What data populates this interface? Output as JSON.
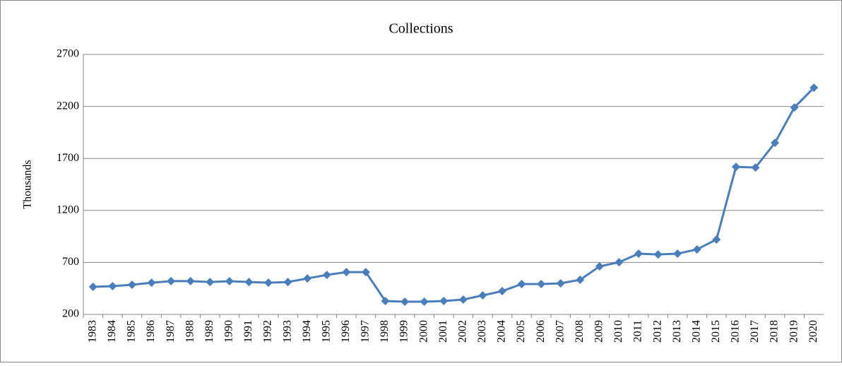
{
  "chart_data": {
    "type": "line",
    "title": "Collections",
    "y_label": "Thousands",
    "categories": [
      "1983",
      "1984",
      "1985",
      "1986",
      "1987",
      "1988",
      "1989",
      "1990",
      "1991",
      "1992",
      "1993",
      "1994",
      "1995",
      "1996",
      "1997",
      "1998",
      "1999",
      "2000",
      "2001",
      "2002",
      "2003",
      "2004",
      "2005",
      "2006",
      "2007",
      "2008",
      "2009",
      "2010",
      "2011",
      "2012",
      "2013",
      "2014",
      "2015",
      "2016",
      "2017",
      "2018",
      "2019",
      "2020"
    ],
    "values": [
      465,
      472,
      485,
      505,
      520,
      520,
      512,
      519,
      512,
      505,
      512,
      546,
      580,
      607,
      607,
      329,
      322,
      322,
      329,
      343,
      383,
      424,
      492,
      492,
      499,
      533,
      662,
      702,
      784,
      777,
      784,
      825,
      920,
      1619,
      1612,
      1850,
      2190,
      2380
    ],
    "color": "#4a7ebb",
    "ylim": [
      200,
      2700
    ],
    "yticks": [
      200,
      700,
      1200,
      1700,
      2200,
      2700
    ],
    "grid": true
  }
}
